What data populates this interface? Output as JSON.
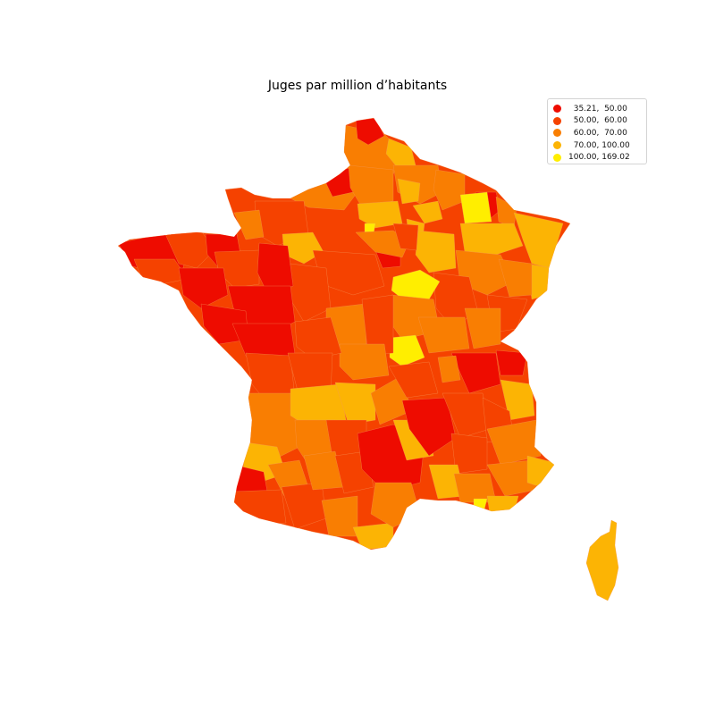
{
  "title": "Juges par million d’habitants",
  "legend": {
    "items": [
      {
        "label": "  35.21,  50.00",
        "color": "#ee0c00"
      },
      {
        "label": "  50.00,  60.00",
        "color": "#f54200"
      },
      {
        "label": "  60.00,  70.00",
        "color": "#f97e02"
      },
      {
        "label": "  70.00, 100.00",
        "color": "#fcb404"
      },
      {
        "label": "100.00, 169.02",
        "color": "#ffee00"
      }
    ]
  },
  "colors": {
    "class_1": "#ee0c00",
    "class_2": "#f54200",
    "class_3": "#f97e02",
    "class_4": "#fcb404",
    "class_5": "#ffee00",
    "borders": "#f59a5a"
  }
}
